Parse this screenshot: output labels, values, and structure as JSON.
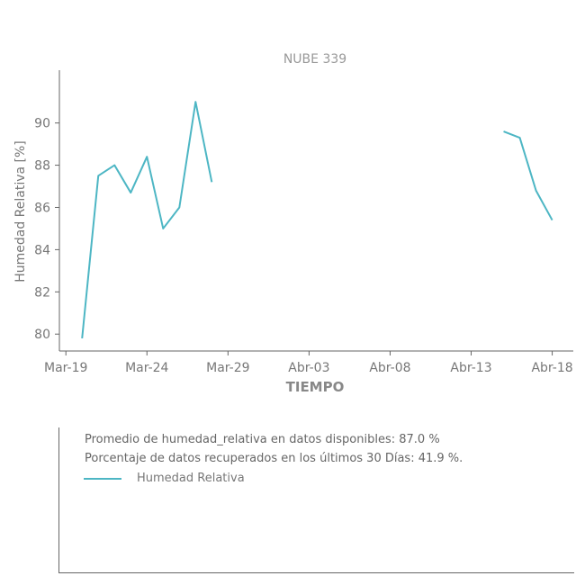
{
  "chart_data": {
    "type": "line",
    "title": "NUBE 339",
    "xlabel": "TIEMPO",
    "ylabel": "Humedad Relativa [%]",
    "x_ticks": [
      "Mar-19",
      "Mar-24",
      "Mar-29",
      "Abr-03",
      "Abr-08",
      "Abr-13",
      "Abr-18"
    ],
    "x_tick_days": [
      0,
      5,
      10,
      15,
      20,
      25,
      30
    ],
    "xlim_days": [
      -0.4,
      31.3
    ],
    "y_ticks": [
      80,
      82,
      84,
      86,
      88,
      90
    ],
    "ylim": [
      79.2,
      92.5
    ],
    "grid": false,
    "series": [
      {
        "name": "Humedad Relativa",
        "color": "#4db6c4",
        "segments": [
          {
            "x_days": [
              1,
              2,
              3,
              4,
              5,
              6,
              7,
              8,
              9
            ],
            "dates": [
              "Mar-20",
              "Mar-21",
              "Mar-22",
              "Mar-23",
              "Mar-24",
              "Mar-25",
              "Mar-26",
              "Mar-27",
              "Mar-28"
            ],
            "values": [
              79.8,
              87.5,
              88.0,
              86.7,
              88.4,
              85.0,
              86.0,
              91.0,
              87.2
            ]
          },
          {
            "x_days": [
              27,
              28,
              29,
              30
            ],
            "dates": [
              "Abr-15",
              "Abr-16",
              "Abr-17",
              "Abr-18"
            ],
            "values": [
              89.6,
              89.3,
              86.8,
              85.4
            ]
          }
        ]
      }
    ]
  },
  "info": {
    "average_line": "Promedio de humedad_relativa en datos disponibles: 87.0 %",
    "recovered_line": "Porcentaje de datos recuperados en los últimos 30 Días: 41.9 %.",
    "legend_label": "Humedad Relativa"
  }
}
